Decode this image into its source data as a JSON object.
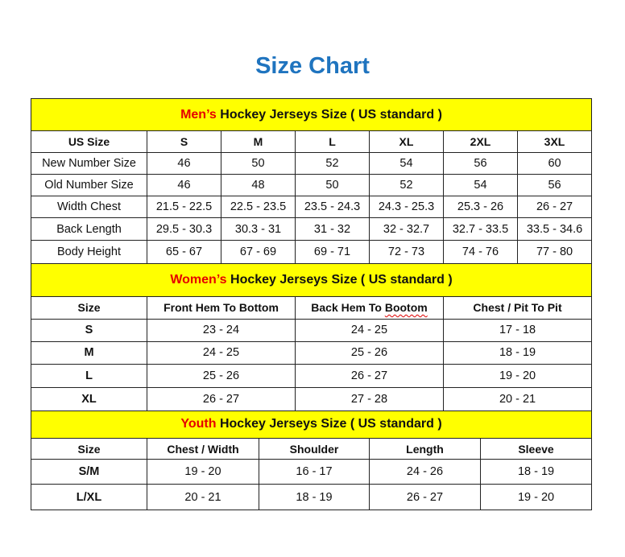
{
  "title": "Size Chart",
  "men": {
    "title_highlight": "Men’s",
    "title_rest": " Hockey Jerseys Size ( US standard )",
    "headers": [
      "US Size",
      "S",
      "M",
      "L",
      "XL",
      "2XL",
      "3XL"
    ],
    "rows": [
      [
        "New Number Size",
        "46",
        "50",
        "52",
        "54",
        "56",
        "60"
      ],
      [
        "Old Number Size",
        "46",
        "48",
        "50",
        "52",
        "54",
        "56"
      ],
      [
        "Width Chest",
        "21.5 - 22.5",
        "22.5 - 23.5",
        "23.5 - 24.3",
        "24.3 - 25.3",
        "25.3 - 26",
        "26 - 27"
      ],
      [
        "Back Length",
        "29.5 - 30.3",
        "30.3 - 31",
        "31 - 32",
        "32 - 32.7",
        "32.7 - 33.5",
        "33.5 - 34.6"
      ],
      [
        "Body Height",
        "65 - 67",
        "67 - 69",
        "69 - 71",
        "72 - 73",
        "74 - 76",
        "77 - 80"
      ]
    ]
  },
  "women": {
    "title_highlight": "Women’s",
    "title_rest": " Hockey Jerseys Size ( US standard )",
    "headers": [
      "Size",
      "Front Hem To Bottom",
      "Back Hem To Bootom",
      "Chest / Pit To Pit"
    ],
    "rows": [
      [
        "S",
        "23 - 24",
        "24 - 25",
        "17 - 18"
      ],
      [
        "M",
        "24 - 25",
        "25 - 26",
        "18 - 19"
      ],
      [
        "L",
        "25 - 26",
        "26 - 27",
        "19 - 20"
      ],
      [
        "XL",
        "26 - 27",
        "27 - 28",
        "20 - 21"
      ]
    ]
  },
  "youth": {
    "title_highlight": "Youth",
    "title_rest": " Hockey Jerseys Size ( US standard )",
    "headers": [
      "Size",
      "Chest / Width",
      "Shoulder",
      "Length",
      "Sleeve"
    ],
    "rows": [
      [
        "S/M",
        "19 - 20",
        "16 - 17",
        "24 - 26",
        "18 - 19"
      ],
      [
        "L/XL",
        "20 - 21",
        "18 - 19",
        "26 - 27",
        "19 - 20"
      ]
    ]
  }
}
